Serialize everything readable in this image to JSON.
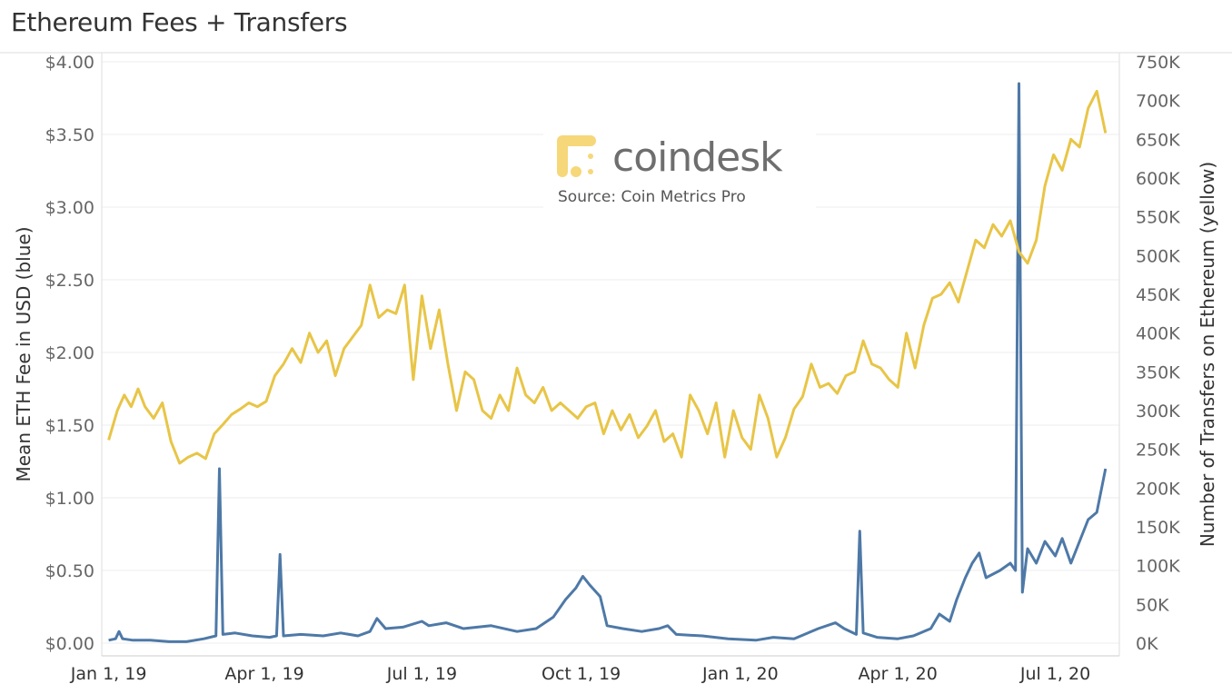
{
  "title": "Ethereum Fees + Transfers",
  "watermark": {
    "brand": "coindesk",
    "source": "Source: Coin Metrics Pro"
  },
  "colors": {
    "fee_series": "#4e79a7",
    "transfers_series": "#e8c547",
    "grid": "#eeeeee"
  },
  "chart_data": {
    "type": "line",
    "title": "Ethereum Fees + Transfers",
    "x_range": [
      "2018-12-28",
      "2020-08-07"
    ],
    "x_ticks": [
      {
        "date": "2019-01-01",
        "label": "Jan 1, 19"
      },
      {
        "date": "2019-04-01",
        "label": "Apr 1, 19"
      },
      {
        "date": "2019-07-01",
        "label": "Jul 1, 19"
      },
      {
        "date": "2019-10-01",
        "label": "Oct 1, 19"
      },
      {
        "date": "2020-01-01",
        "label": "Jan 1, 20"
      },
      {
        "date": "2020-04-01",
        "label": "Apr 1, 20"
      },
      {
        "date": "2020-07-01",
        "label": "Jul 1, 20"
      }
    ],
    "y_left": {
      "label": "Mean ETH Fee in USD (blue)",
      "range": [
        0,
        4
      ],
      "ticks": [
        {
          "value": 0,
          "label": "$0.00"
        },
        {
          "value": 0.5,
          "label": "$0.50"
        },
        {
          "value": 1.0,
          "label": "$1.00"
        },
        {
          "value": 1.5,
          "label": "$1.50"
        },
        {
          "value": 2.0,
          "label": "$2.00"
        },
        {
          "value": 2.5,
          "label": "$2.50"
        },
        {
          "value": 3.0,
          "label": "$3.00"
        },
        {
          "value": 3.5,
          "label": "$3.50"
        },
        {
          "value": 4.0,
          "label": "$4.00"
        }
      ]
    },
    "y_right": {
      "label": "Number of Transfers on Ethereum (yellow)",
      "range": [
        0,
        750000
      ],
      "ticks": [
        {
          "value": 0,
          "label": "0K"
        },
        {
          "value": 50000,
          "label": "50K"
        },
        {
          "value": 100000,
          "label": "100K"
        },
        {
          "value": 150000,
          "label": "150K"
        },
        {
          "value": 200000,
          "label": "200K"
        },
        {
          "value": 250000,
          "label": "250K"
        },
        {
          "value": 300000,
          "label": "300K"
        },
        {
          "value": 350000,
          "label": "350K"
        },
        {
          "value": 400000,
          "label": "400K"
        },
        {
          "value": 450000,
          "label": "450K"
        },
        {
          "value": 500000,
          "label": "500K"
        },
        {
          "value": 550000,
          "label": "550K"
        },
        {
          "value": 600000,
          "label": "600K"
        },
        {
          "value": 650000,
          "label": "650K"
        },
        {
          "value": 700000,
          "label": "700K"
        },
        {
          "value": 750000,
          "label": "750K"
        }
      ]
    },
    "grid": true,
    "series": [
      {
        "axis": "left",
        "color": "#4e79a7",
        "points": [
          [
            "2019-01-01",
            0.02
          ],
          [
            "2019-01-05",
            0.03
          ],
          [
            "2019-01-07",
            0.08
          ],
          [
            "2019-01-09",
            0.03
          ],
          [
            "2019-01-15",
            0.02
          ],
          [
            "2019-01-25",
            0.02
          ],
          [
            "2019-02-05",
            0.01
          ],
          [
            "2019-02-15",
            0.01
          ],
          [
            "2019-02-25",
            0.03
          ],
          [
            "2019-03-04",
            0.05
          ],
          [
            "2019-03-06",
            1.2
          ],
          [
            "2019-03-08",
            0.06
          ],
          [
            "2019-03-15",
            0.07
          ],
          [
            "2019-03-25",
            0.05
          ],
          [
            "2019-04-04",
            0.04
          ],
          [
            "2019-04-08",
            0.05
          ],
          [
            "2019-04-10",
            0.61
          ],
          [
            "2019-04-12",
            0.05
          ],
          [
            "2019-04-22",
            0.06
          ],
          [
            "2019-05-05",
            0.05
          ],
          [
            "2019-05-15",
            0.07
          ],
          [
            "2019-05-25",
            0.05
          ],
          [
            "2019-06-01",
            0.08
          ],
          [
            "2019-06-05",
            0.17
          ],
          [
            "2019-06-10",
            0.1
          ],
          [
            "2019-06-20",
            0.11
          ],
          [
            "2019-07-01",
            0.15
          ],
          [
            "2019-07-05",
            0.12
          ],
          [
            "2019-07-15",
            0.14
          ],
          [
            "2019-07-25",
            0.1
          ],
          [
            "2019-08-10",
            0.12
          ],
          [
            "2019-08-25",
            0.08
          ],
          [
            "2019-09-05",
            0.1
          ],
          [
            "2019-09-15",
            0.18
          ],
          [
            "2019-09-22",
            0.3
          ],
          [
            "2019-09-28",
            0.38
          ],
          [
            "2019-10-02",
            0.46
          ],
          [
            "2019-10-06",
            0.4
          ],
          [
            "2019-10-12",
            0.32
          ],
          [
            "2019-10-16",
            0.12
          ],
          [
            "2019-10-25",
            0.1
          ],
          [
            "2019-11-05",
            0.08
          ],
          [
            "2019-11-15",
            0.1
          ],
          [
            "2019-11-20",
            0.12
          ],
          [
            "2019-11-25",
            0.06
          ],
          [
            "2019-12-10",
            0.05
          ],
          [
            "2019-12-25",
            0.03
          ],
          [
            "2020-01-10",
            0.02
          ],
          [
            "2020-01-20",
            0.04
          ],
          [
            "2020-02-01",
            0.03
          ],
          [
            "2020-02-15",
            0.1
          ],
          [
            "2020-02-25",
            0.14
          ],
          [
            "2020-03-01",
            0.1
          ],
          [
            "2020-03-08",
            0.06
          ],
          [
            "2020-03-10",
            0.77
          ],
          [
            "2020-03-12",
            0.07
          ],
          [
            "2020-03-20",
            0.04
          ],
          [
            "2020-04-01",
            0.03
          ],
          [
            "2020-04-10",
            0.05
          ],
          [
            "2020-04-20",
            0.1
          ],
          [
            "2020-04-25",
            0.2
          ],
          [
            "2020-05-01",
            0.15
          ],
          [
            "2020-05-05",
            0.3
          ],
          [
            "2020-05-10",
            0.45
          ],
          [
            "2020-05-14",
            0.55
          ],
          [
            "2020-05-18",
            0.62
          ],
          [
            "2020-05-22",
            0.45
          ],
          [
            "2020-05-30",
            0.5
          ],
          [
            "2020-06-05",
            0.55
          ],
          [
            "2020-06-08",
            0.5
          ],
          [
            "2020-06-10",
            3.85
          ],
          [
            "2020-06-12",
            0.35
          ],
          [
            "2020-06-15",
            0.65
          ],
          [
            "2020-06-20",
            0.55
          ],
          [
            "2020-06-25",
            0.7
          ],
          [
            "2020-07-01",
            0.6
          ],
          [
            "2020-07-05",
            0.72
          ],
          [
            "2020-07-10",
            0.55
          ],
          [
            "2020-07-15",
            0.7
          ],
          [
            "2020-07-20",
            0.85
          ],
          [
            "2020-07-25",
            0.9
          ],
          [
            "2020-07-30",
            1.2
          ]
        ]
      },
      {
        "axis": "right",
        "color": "#e8c547",
        "points": [
          [
            "2019-01-01",
            262000
          ],
          [
            "2019-01-06",
            300000
          ],
          [
            "2019-01-10",
            320000
          ],
          [
            "2019-01-14",
            305000
          ],
          [
            "2019-01-18",
            328000
          ],
          [
            "2019-01-22",
            305000
          ],
          [
            "2019-01-27",
            290000
          ],
          [
            "2019-02-01",
            310000
          ],
          [
            "2019-02-06",
            260000
          ],
          [
            "2019-02-11",
            232000
          ],
          [
            "2019-02-16",
            240000
          ],
          [
            "2019-02-21",
            245000
          ],
          [
            "2019-02-26",
            238000
          ],
          [
            "2019-03-03",
            270000
          ],
          [
            "2019-03-08",
            282000
          ],
          [
            "2019-03-13",
            295000
          ],
          [
            "2019-03-18",
            302000
          ],
          [
            "2019-03-23",
            310000
          ],
          [
            "2019-03-28",
            305000
          ],
          [
            "2019-04-02",
            312000
          ],
          [
            "2019-04-07",
            345000
          ],
          [
            "2019-04-12",
            360000
          ],
          [
            "2019-04-17",
            380000
          ],
          [
            "2019-04-22",
            362000
          ],
          [
            "2019-04-27",
            400000
          ],
          [
            "2019-05-02",
            375000
          ],
          [
            "2019-05-07",
            390000
          ],
          [
            "2019-05-12",
            345000
          ],
          [
            "2019-05-17",
            380000
          ],
          [
            "2019-05-22",
            395000
          ],
          [
            "2019-05-27",
            410000
          ],
          [
            "2019-06-01",
            462000
          ],
          [
            "2019-06-06",
            420000
          ],
          [
            "2019-06-11",
            430000
          ],
          [
            "2019-06-16",
            425000
          ],
          [
            "2019-06-21",
            462000
          ],
          [
            "2019-06-26",
            340000
          ],
          [
            "2019-07-01",
            448000
          ],
          [
            "2019-07-06",
            380000
          ],
          [
            "2019-07-11",
            430000
          ],
          [
            "2019-07-16",
            360000
          ],
          [
            "2019-07-21",
            300000
          ],
          [
            "2019-07-26",
            350000
          ],
          [
            "2019-07-31",
            340000
          ],
          [
            "2019-08-05",
            300000
          ],
          [
            "2019-08-10",
            290000
          ],
          [
            "2019-08-15",
            320000
          ],
          [
            "2019-08-20",
            300000
          ],
          [
            "2019-08-25",
            355000
          ],
          [
            "2019-08-30",
            320000
          ],
          [
            "2019-09-04",
            310000
          ],
          [
            "2019-09-09",
            330000
          ],
          [
            "2019-09-14",
            300000
          ],
          [
            "2019-09-19",
            310000
          ],
          [
            "2019-09-24",
            300000
          ],
          [
            "2019-09-29",
            290000
          ],
          [
            "2019-10-04",
            305000
          ],
          [
            "2019-10-09",
            310000
          ],
          [
            "2019-10-14",
            270000
          ],
          [
            "2019-10-19",
            300000
          ],
          [
            "2019-10-24",
            275000
          ],
          [
            "2019-10-29",
            295000
          ],
          [
            "2019-11-03",
            265000
          ],
          [
            "2019-11-08",
            280000
          ],
          [
            "2019-11-13",
            300000
          ],
          [
            "2019-11-18",
            260000
          ],
          [
            "2019-11-23",
            270000
          ],
          [
            "2019-11-28",
            240000
          ],
          [
            "2019-12-03",
            320000
          ],
          [
            "2019-12-08",
            300000
          ],
          [
            "2019-12-13",
            270000
          ],
          [
            "2019-12-18",
            310000
          ],
          [
            "2019-12-23",
            240000
          ],
          [
            "2019-12-28",
            300000
          ],
          [
            "2020-01-02",
            265000
          ],
          [
            "2020-01-07",
            250000
          ],
          [
            "2020-01-12",
            320000
          ],
          [
            "2020-01-17",
            290000
          ],
          [
            "2020-01-22",
            240000
          ],
          [
            "2020-01-27",
            265000
          ],
          [
            "2020-02-01",
            302000
          ],
          [
            "2020-02-06",
            318000
          ],
          [
            "2020-02-11",
            360000
          ],
          [
            "2020-02-16",
            330000
          ],
          [
            "2020-02-21",
            335000
          ],
          [
            "2020-02-26",
            322000
          ],
          [
            "2020-03-02",
            345000
          ],
          [
            "2020-03-07",
            350000
          ],
          [
            "2020-03-12",
            390000
          ],
          [
            "2020-03-17",
            360000
          ],
          [
            "2020-03-22",
            355000
          ],
          [
            "2020-03-27",
            340000
          ],
          [
            "2020-04-01",
            330000
          ],
          [
            "2020-04-06",
            400000
          ],
          [
            "2020-04-11",
            355000
          ],
          [
            "2020-04-16",
            410000
          ],
          [
            "2020-04-21",
            445000
          ],
          [
            "2020-04-26",
            450000
          ],
          [
            "2020-05-01",
            465000
          ],
          [
            "2020-05-06",
            440000
          ],
          [
            "2020-05-11",
            480000
          ],
          [
            "2020-05-16",
            520000
          ],
          [
            "2020-05-21",
            510000
          ],
          [
            "2020-05-26",
            540000
          ],
          [
            "2020-05-31",
            525000
          ],
          [
            "2020-06-05",
            545000
          ],
          [
            "2020-06-10",
            505000
          ],
          [
            "2020-06-15",
            490000
          ],
          [
            "2020-06-20",
            520000
          ],
          [
            "2020-06-25",
            590000
          ],
          [
            "2020-06-30",
            630000
          ],
          [
            "2020-07-05",
            610000
          ],
          [
            "2020-07-10",
            650000
          ],
          [
            "2020-07-15",
            640000
          ],
          [
            "2020-07-20",
            690000
          ],
          [
            "2020-07-25",
            712000
          ],
          [
            "2020-07-30",
            658000
          ]
        ]
      }
    ]
  }
}
